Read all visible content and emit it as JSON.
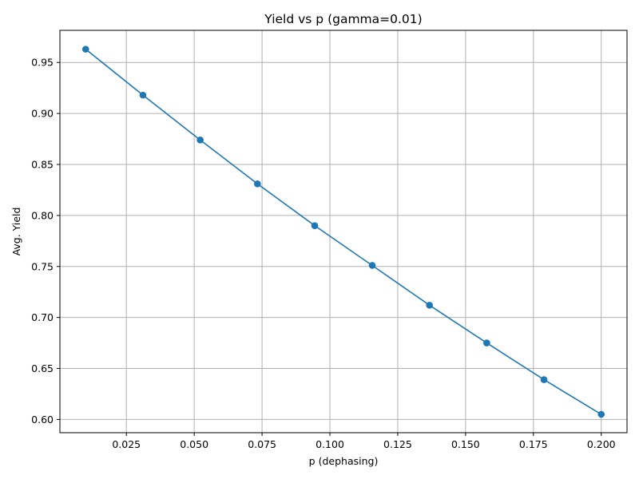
{
  "chart_data": {
    "type": "line",
    "title": "Yield vs p (gamma=0.01)",
    "xlabel": "p (dephasing)",
    "ylabel": "Avg. Yield",
    "xlim": [
      0.0005,
      0.2095
    ],
    "ylim": [
      0.587,
      0.9815
    ],
    "xticks": [
      0.025,
      0.05,
      0.075,
      0.1,
      0.125,
      0.15,
      0.175,
      0.2
    ],
    "xtick_labels": [
      "0.025",
      "0.050",
      "0.075",
      "0.100",
      "0.125",
      "0.150",
      "0.175",
      "0.200"
    ],
    "yticks": [
      0.6,
      0.65,
      0.7,
      0.75,
      0.8,
      0.85,
      0.9,
      0.95
    ],
    "ytick_labels": [
      "0.60",
      "0.65",
      "0.70",
      "0.75",
      "0.80",
      "0.85",
      "0.90",
      "0.95"
    ],
    "grid": true,
    "marker": "circle",
    "series": [
      {
        "color": "#1f77b4",
        "x": [
          0.01,
          0.0311,
          0.0522,
          0.0733,
          0.0944,
          0.1156,
          0.1367,
          0.1578,
          0.1789,
          0.2
        ],
        "y": [
          0.963,
          0.918,
          0.874,
          0.831,
          0.79,
          0.751,
          0.712,
          0.675,
          0.639,
          0.605
        ]
      }
    ]
  }
}
